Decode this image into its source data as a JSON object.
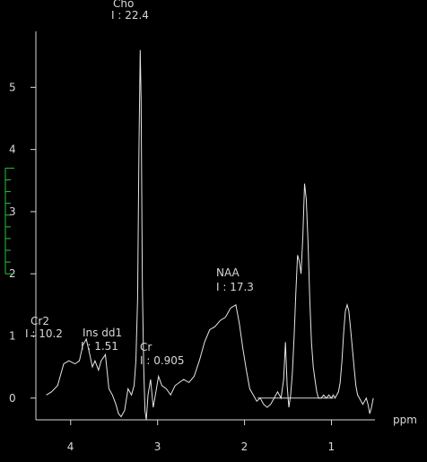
{
  "chart_data": {
    "type": "line",
    "xlabel": "ppm",
    "ylabel": "",
    "xlim": [
      4.4,
      0.5
    ],
    "ylim": [
      -0.35,
      5.9
    ],
    "x_ticks": [
      "4",
      "3",
      "2",
      "1"
    ],
    "y_ticks": [
      "0",
      "1",
      "2",
      "3",
      "4",
      "5"
    ],
    "grid": false,
    "reversed_x": true,
    "baseline": {
      "x": [
        1.85,
        0.98
      ],
      "y": [
        0,
        0
      ]
    },
    "series": [
      {
        "x": [
          4.28,
          4.22,
          4.15,
          4.08,
          4.02,
          3.95,
          3.9,
          3.86,
          3.82,
          3.78,
          3.75,
          3.72,
          3.68,
          3.65,
          3.6,
          3.56,
          3.52,
          3.48,
          3.45,
          3.42,
          3.38,
          3.34,
          3.3,
          3.27,
          3.25,
          3.23,
          3.215,
          3.2,
          3.19,
          3.175,
          3.16,
          3.145,
          3.13,
          3.11,
          3.08,
          3.05,
          3.02,
          2.99,
          2.95,
          2.9,
          2.85,
          2.8,
          2.75,
          2.7,
          2.64,
          2.58,
          2.52,
          2.46,
          2.4,
          2.34,
          2.28,
          2.22,
          2.16,
          2.1,
          2.06,
          2.02,
          1.98,
          1.94,
          1.9,
          1.86,
          1.82,
          1.78,
          1.74,
          1.7,
          1.66,
          1.62,
          1.58,
          1.55,
          1.53,
          1.51,
          1.49,
          1.47,
          1.45,
          1.43,
          1.41,
          1.39,
          1.37,
          1.35,
          1.33,
          1.31,
          1.29,
          1.27,
          1.25,
          1.23,
          1.21,
          1.19,
          1.17,
          1.15,
          1.12,
          1.09,
          1.06,
          1.03,
          1.0,
          0.98,
          0.96,
          0.94,
          0.92,
          0.9,
          0.88,
          0.86,
          0.84,
          0.82,
          0.8,
          0.78,
          0.76,
          0.74,
          0.72,
          0.7,
          0.68,
          0.66,
          0.64,
          0.62,
          0.6,
          0.58,
          0.56,
          0.54,
          0.52
        ],
        "y": [
          0.05,
          0.1,
          0.2,
          0.55,
          0.6,
          0.55,
          0.6,
          0.85,
          0.95,
          0.7,
          0.5,
          0.6,
          0.45,
          0.6,
          0.7,
          0.15,
          0.05,
          -0.1,
          -0.25,
          -0.3,
          -0.2,
          0.15,
          0.05,
          0.2,
          0.6,
          1.6,
          4.0,
          5.6,
          4.8,
          1.8,
          0.5,
          -0.2,
          -0.35,
          0.05,
          0.3,
          -0.15,
          0.1,
          0.35,
          0.2,
          0.15,
          0.05,
          0.2,
          0.25,
          0.3,
          0.25,
          0.35,
          0.6,
          0.9,
          1.1,
          1.15,
          1.25,
          1.3,
          1.45,
          1.5,
          1.2,
          0.8,
          0.45,
          0.15,
          0.05,
          -0.05,
          0.0,
          -0.1,
          -0.15,
          -0.1,
          0.0,
          0.1,
          0.0,
          0.3,
          0.9,
          0.2,
          -0.15,
          0.05,
          0.4,
          1.0,
          1.7,
          2.3,
          2.2,
          2.0,
          2.6,
          3.45,
          3.2,
          2.5,
          1.6,
          0.9,
          0.5,
          0.3,
          0.1,
          0.0,
          0.0,
          0.05,
          0.0,
          0.05,
          0.0,
          0.05,
          0.0,
          0.05,
          0.1,
          0.25,
          0.6,
          1.05,
          1.4,
          1.5,
          1.4,
          1.1,
          0.8,
          0.5,
          0.2,
          0.05,
          0.0,
          -0.05,
          -0.1,
          -0.05,
          0.0,
          -0.1,
          -0.25,
          -0.15,
          0.0
        ]
      }
    ],
    "peaks": [
      {
        "name": "Cho",
        "value": "I : 22.4"
      },
      {
        "name": "NAA",
        "value": "I : 17.3"
      },
      {
        "name": "Cr2",
        "value": "I : 10.2"
      },
      {
        "name": "Ins dd1",
        "value": "I : 1.51"
      },
      {
        "name": "Cr",
        "value": "I : 0.905"
      }
    ],
    "colors": {
      "background": "#000000",
      "spectrum": "#e6e6e6",
      "axis": "#d8d8d8",
      "roi_marker": "#2fbf3a"
    }
  }
}
